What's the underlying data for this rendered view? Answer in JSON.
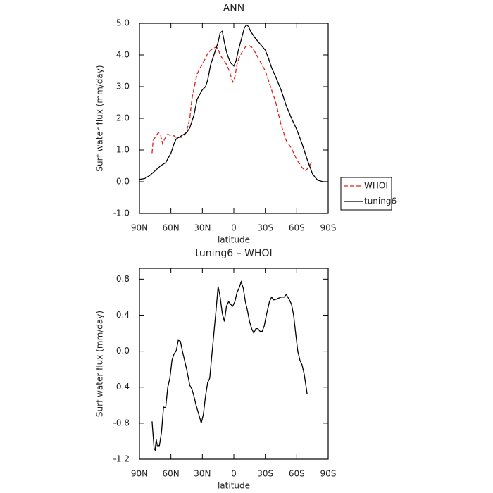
{
  "chart_data": [
    {
      "type": "line",
      "title": "ANN",
      "xlabel": "latitude",
      "ylabel": "Surf water flux (mm/day)",
      "xlim": [
        90,
        -90
      ],
      "ylim": [
        -1.0,
        5.0
      ],
      "xticks": [
        {
          "value": 90,
          "label": "90N"
        },
        {
          "value": 60,
          "label": "60N"
        },
        {
          "value": 30,
          "label": "30N"
        },
        0,
        {
          "value": -30,
          "label": "30S"
        },
        {
          "value": -60,
          "label": "60S"
        },
        {
          "value": -90,
          "label": "90S"
        }
      ],
      "yticks": [
        {
          "value": 5,
          "label": "5.0"
        },
        {
          "value": 4,
          "label": "4.0"
        },
        {
          "value": 3,
          "label": "3.0"
        },
        {
          "value": 2,
          "label": "2.0"
        },
        {
          "value": 1,
          "label": "1.0"
        },
        {
          "value": 0,
          "label": "0.0"
        },
        {
          "value": -1,
          "label": "-1.0"
        }
      ],
      "legend": "right",
      "series": [
        {
          "name": "WHOI",
          "color": "#e0201b",
          "linestyle": "dashed",
          "x": [
            78,
            77,
            75,
            72,
            70,
            68,
            66,
            63,
            60,
            57,
            55,
            50,
            47,
            45,
            42,
            40,
            37,
            35,
            32,
            30,
            27,
            25,
            22,
            20,
            17,
            15,
            13,
            10,
            7,
            5,
            3,
            1,
            -1,
            -3,
            -5,
            -8,
            -11,
            -14,
            -17,
            -20,
            -25,
            -30,
            -35,
            -40,
            -45,
            -50,
            -55,
            -60,
            -65,
            -68,
            -70,
            -73,
            -75
          ],
          "values": [
            0.9,
            1.3,
            1.4,
            1.55,
            1.5,
            1.2,
            1.35,
            1.5,
            1.45,
            1.45,
            1.4,
            1.4,
            1.45,
            1.6,
            2.0,
            2.6,
            3.1,
            3.4,
            3.6,
            3.7,
            3.9,
            4.05,
            4.15,
            4.2,
            4.25,
            4.2,
            4.0,
            3.85,
            3.7,
            3.55,
            3.35,
            3.15,
            3.3,
            3.7,
            3.9,
            4.1,
            4.25,
            4.3,
            4.25,
            4.1,
            3.8,
            3.5,
            3.0,
            2.5,
            1.8,
            1.3,
            1.05,
            0.7,
            0.45,
            0.35,
            0.4,
            0.55,
            0.65
          ]
        },
        {
          "name": "tuning6",
          "color": "#000000",
          "linestyle": "solid",
          "x": [
            90,
            85,
            80,
            75,
            70,
            65,
            60,
            57,
            55,
            50,
            45,
            42,
            38,
            35,
            30,
            27,
            25,
            22,
            20,
            17,
            15,
            13,
            11,
            9,
            7,
            5,
            3,
            0,
            -2,
            -4,
            -6,
            -8,
            -10,
            -12,
            -14,
            -16,
            -20,
            -25,
            -30,
            -33,
            -36,
            -40,
            -45,
            -50,
            -55,
            -60,
            -65,
            -70,
            -75,
            -78,
            -80,
            -85,
            -90
          ],
          "values": [
            0.07,
            0.1,
            0.2,
            0.35,
            0.5,
            0.6,
            0.9,
            1.2,
            1.35,
            1.45,
            1.55,
            1.7,
            2.1,
            2.6,
            2.9,
            3.0,
            3.2,
            3.7,
            3.9,
            4.2,
            4.4,
            4.7,
            4.75,
            4.4,
            4.1,
            3.9,
            3.75,
            3.65,
            3.8,
            4.1,
            4.35,
            4.6,
            4.85,
            4.95,
            4.9,
            4.75,
            4.55,
            4.35,
            4.15,
            3.9,
            3.6,
            3.3,
            2.9,
            2.4,
            2.0,
            1.65,
            1.2,
            0.7,
            0.25,
            0.12,
            0.05,
            0.0,
            0.0
          ]
        }
      ]
    },
    {
      "type": "line",
      "title": "tuning6 – WHOI",
      "xlabel": "latitude",
      "ylabel": "Surf water flux (mm/day)",
      "xlim": [
        90,
        -90
      ],
      "ylim": [
        -1.2,
        0.92
      ],
      "xticks": [
        {
          "value": 90,
          "label": "90N"
        },
        {
          "value": 60,
          "label": "60N"
        },
        {
          "value": 30,
          "label": "30N"
        },
        0,
        {
          "value": -30,
          "label": "30S"
        },
        {
          "value": -60,
          "label": "60S"
        },
        {
          "value": -90,
          "label": "90S"
        }
      ],
      "yticks": [
        0.8,
        0.4,
        {
          "value": 0,
          "label": "0.0"
        },
        -0.4,
        -0.8,
        -1.2
      ],
      "series": [
        {
          "color": "#000000",
          "linestyle": "solid",
          "x": [
            78,
            76,
            75,
            74,
            73,
            71,
            69,
            67,
            65,
            63,
            61,
            59,
            57,
            55,
            53,
            51,
            49,
            47,
            45,
            42,
            40,
            38,
            36,
            33,
            31,
            29,
            27,
            25,
            23,
            21,
            19,
            17,
            15,
            13,
            11,
            9,
            7,
            5,
            3,
            1,
            -1,
            -3,
            -5,
            -7,
            -9,
            -11,
            -13,
            -15,
            -17,
            -19,
            -21,
            -23,
            -25,
            -27,
            -29,
            -31,
            -34,
            -36,
            -38,
            -41,
            -45,
            -48,
            -50,
            -53,
            -55,
            -57,
            -59,
            -61,
            -63,
            -65,
            -67,
            -69,
            -70
          ],
          "values": [
            -0.78,
            -1.08,
            -1.1,
            -0.98,
            -1.05,
            -1.05,
            -0.9,
            -0.62,
            -0.63,
            -0.4,
            -0.3,
            -0.1,
            -0.03,
            0.0,
            0.12,
            0.11,
            0.0,
            -0.1,
            -0.2,
            -0.38,
            -0.42,
            -0.5,
            -0.6,
            -0.72,
            -0.8,
            -0.7,
            -0.5,
            -0.35,
            -0.3,
            -0.05,
            0.2,
            0.45,
            0.72,
            0.6,
            0.42,
            0.33,
            0.5,
            0.55,
            0.52,
            0.5,
            0.55,
            0.65,
            0.7,
            0.77,
            0.7,
            0.55,
            0.45,
            0.33,
            0.25,
            0.2,
            0.25,
            0.25,
            0.22,
            0.22,
            0.28,
            0.4,
            0.55,
            0.6,
            0.57,
            0.58,
            0.6,
            0.6,
            0.63,
            0.57,
            0.52,
            0.4,
            0.2,
            0.0,
            -0.1,
            -0.15,
            -0.25,
            -0.4,
            -0.48
          ]
        }
      ]
    }
  ]
}
